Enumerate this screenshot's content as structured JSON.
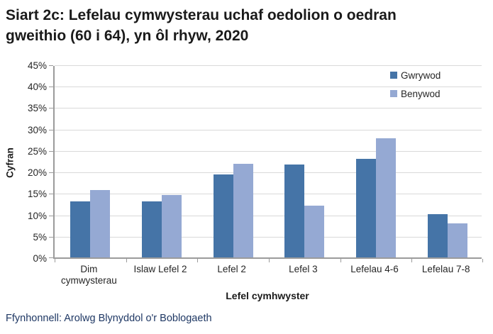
{
  "title": "Siart 2c: Lefelau cymwysterau uchaf oedolion o oedran gweithio (60 i 64), yn ôl rhyw, 2020",
  "source": "Ffynhonnell: Arolwg Blynyddol o'r Boblogaeth",
  "chart_data": {
    "type": "bar",
    "title": "Siart 2c: Lefelau cymwysterau uchaf oedolion o oedran gweithio (60 i 64), yn ôl rhyw, 2020",
    "xlabel": "Lefel cymhwyster",
    "ylabel": "Cyfran",
    "categories": [
      "Dim cymwysterau",
      "Islaw Lefel 2",
      "Lefel 2",
      "Lefel 3",
      "Lefelau 4-6",
      "Lefelau 7-8"
    ],
    "series": [
      {
        "name": "Gwrywod",
        "color": "#4574a7",
        "values": [
          13.0,
          13.0,
          19.4,
          21.7,
          23.0,
          10.1
        ]
      },
      {
        "name": "Benywod",
        "color": "#95a9d3",
        "values": [
          15.8,
          14.5,
          21.9,
          12.1,
          27.8,
          8.0
        ]
      }
    ],
    "ylim": [
      0,
      45
    ],
    "ytick_step": 5,
    "ytick_labels": [
      "0%",
      "5%",
      "10%",
      "15%",
      "20%",
      "25%",
      "30%",
      "35%",
      "40%",
      "45%"
    ],
    "grid": true,
    "legend_position": "top-right"
  },
  "colors": {
    "bar_dark": "#4574a7",
    "bar_light": "#95a9d3",
    "gridline": "#d9d9d9",
    "axis": "#9b9b9b",
    "source_text": "#1f3864",
    "text": "#1a1a1a"
  }
}
